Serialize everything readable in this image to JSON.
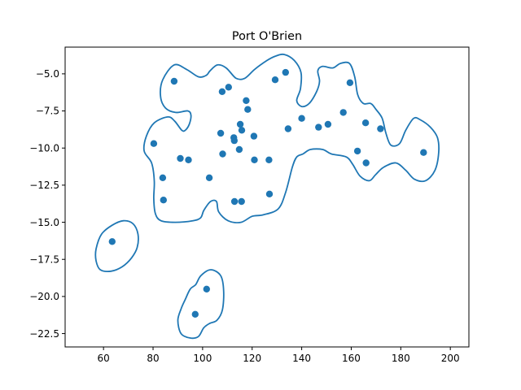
{
  "chart_data": {
    "type": "scatter",
    "title": "Port O'Brien",
    "xlabel": "",
    "ylabel": "",
    "xlim": [
      44.5,
      207.5
    ],
    "ylim": [
      -23.4,
      -3.2
    ],
    "x_ticks": [
      60,
      80,
      100,
      120,
      140,
      160,
      180,
      200
    ],
    "y_ticks": [
      -5.0,
      -7.5,
      -10.0,
      -12.5,
      -15.0,
      -17.5,
      -20.0,
      -22.5
    ],
    "x_tick_labels": [
      "60",
      "80",
      "100",
      "120",
      "140",
      "160",
      "180",
      "200"
    ],
    "y_tick_labels": [
      "−5.0",
      "−7.5",
      "−10.0",
      "−12.5",
      "−15.0",
      "−17.5",
      "−20.0",
      "−22.5"
    ],
    "grid": false,
    "color": "#1f77b4",
    "points": [
      [
        63.5,
        -16.3
      ],
      [
        80.3,
        -9.7
      ],
      [
        83.9,
        -12.0
      ],
      [
        84.2,
        -13.5
      ],
      [
        88.5,
        -5.5
      ],
      [
        91.0,
        -10.7
      ],
      [
        94.3,
        -10.8
      ],
      [
        101.6,
        -19.5
      ],
      [
        97.0,
        -21.2
      ],
      [
        102.7,
        -12.0
      ],
      [
        107.3,
        -9.0
      ],
      [
        107.9,
        -6.2
      ],
      [
        108.1,
        -10.4
      ],
      [
        110.5,
        -5.9
      ],
      [
        112.6,
        -9.3
      ],
      [
        112.8,
        -9.5
      ],
      [
        112.9,
        -13.6
      ],
      [
        114.8,
        -10.1
      ],
      [
        115.2,
        -8.4
      ],
      [
        115.8,
        -8.8
      ],
      [
        115.7,
        -13.6
      ],
      [
        117.6,
        -6.8
      ],
      [
        118.2,
        -7.4
      ],
      [
        120.7,
        -9.2
      ],
      [
        120.9,
        -10.8
      ],
      [
        126.8,
        -10.8
      ],
      [
        127.0,
        -13.1
      ],
      [
        129.3,
        -5.4
      ],
      [
        133.5,
        -4.9
      ],
      [
        134.5,
        -8.7
      ],
      [
        140.0,
        -8.0
      ],
      [
        146.8,
        -8.6
      ],
      [
        150.6,
        -8.4
      ],
      [
        156.8,
        -7.6
      ],
      [
        159.5,
        -5.6
      ],
      [
        162.5,
        -10.2
      ],
      [
        165.8,
        -8.3
      ],
      [
        166.0,
        -11.0
      ],
      [
        171.8,
        -8.7
      ],
      [
        189.2,
        -10.3
      ]
    ],
    "regions": [
      [
        [
          76.4,
          -10.2
        ],
        [
          77.3,
          -9.2
        ],
        [
          80.5,
          -8.3
        ],
        [
          86.0,
          -7.9
        ],
        [
          88.8,
          -8.2
        ],
        [
          91.6,
          -8.8
        ],
        [
          93.0,
          -8.8
        ],
        [
          94.6,
          -8.4
        ],
        [
          95.3,
          -7.8
        ],
        [
          94.0,
          -7.5
        ],
        [
          89.1,
          -7.6
        ],
        [
          85.0,
          -7.3
        ],
        [
          83.0,
          -6.5
        ],
        [
          83.9,
          -5.4
        ],
        [
          88.5,
          -4.4
        ],
        [
          93.5,
          -4.7
        ],
        [
          98.3,
          -5.2
        ],
        [
          101.5,
          -5.1
        ],
        [
          103.0,
          -4.8
        ],
        [
          106.0,
          -4.4
        ],
        [
          109.5,
          -4.6
        ],
        [
          113.5,
          -5.3
        ],
        [
          117.0,
          -5.3
        ],
        [
          121.0,
          -4.7
        ],
        [
          126.0,
          -4.1
        ],
        [
          129.5,
          -3.8
        ],
        [
          133.0,
          -3.7
        ],
        [
          137.0,
          -4.1
        ],
        [
          139.7,
          -4.9
        ],
        [
          139.5,
          -6.0
        ],
        [
          138.0,
          -6.8
        ],
        [
          140.0,
          -7.2
        ],
        [
          143.0,
          -7.0
        ],
        [
          146.0,
          -6.2
        ],
        [
          147.2,
          -5.5
        ],
        [
          146.5,
          -4.8
        ],
        [
          148.3,
          -4.5
        ],
        [
          152.6,
          -4.6
        ],
        [
          155.6,
          -4.3
        ],
        [
          159.3,
          -4.3
        ],
        [
          161.4,
          -5.2
        ],
        [
          162.6,
          -6.4
        ],
        [
          164.9,
          -7.0
        ],
        [
          167.9,
          -7.0
        ],
        [
          170.0,
          -7.4
        ],
        [
          172.5,
          -8.0
        ],
        [
          174.0,
          -9.0
        ],
        [
          176.0,
          -9.8
        ],
        [
          179.5,
          -9.7
        ],
        [
          182.0,
          -8.8
        ],
        [
          185.2,
          -8.0
        ],
        [
          187.9,
          -8.1
        ],
        [
          192.0,
          -8.6
        ],
        [
          194.8,
          -9.3
        ],
        [
          195.3,
          -10.3
        ],
        [
          193.8,
          -11.5
        ],
        [
          190.0,
          -12.2
        ],
        [
          185.5,
          -12.1
        ],
        [
          182.0,
          -11.5
        ],
        [
          178.0,
          -11.0
        ],
        [
          173.0,
          -11.3
        ],
        [
          169.8,
          -11.8
        ],
        [
          167.3,
          -12.2
        ],
        [
          163.6,
          -11.9
        ],
        [
          160.6,
          -11.1
        ],
        [
          158.0,
          -10.6
        ],
        [
          152.0,
          -10.4
        ],
        [
          148.5,
          -10.1
        ],
        [
          143.5,
          -10.1
        ],
        [
          140.5,
          -10.4
        ],
        [
          138.0,
          -10.6
        ],
        [
          136.2,
          -11.3
        ],
        [
          133.5,
          -13.0
        ],
        [
          130.5,
          -14.1
        ],
        [
          124.5,
          -14.5
        ],
        [
          120.0,
          -14.6
        ],
        [
          115.5,
          -15.0
        ],
        [
          110.3,
          -14.9
        ],
        [
          106.5,
          -14.3
        ],
        [
          105.6,
          -13.6
        ],
        [
          103.2,
          -13.6
        ],
        [
          100.5,
          -14.2
        ],
        [
          99.2,
          -14.7
        ],
        [
          96.0,
          -14.9
        ],
        [
          89.0,
          -15.0
        ],
        [
          83.2,
          -14.9
        ],
        [
          80.9,
          -14.4
        ],
        [
          80.3,
          -13.4
        ],
        [
          80.5,
          -12.2
        ],
        [
          79.4,
          -11.0
        ]
      ],
      [
        [
          57.0,
          -16.8
        ],
        [
          59.2,
          -15.8
        ],
        [
          63.5,
          -15.2
        ],
        [
          68.0,
          -14.9
        ],
        [
          71.9,
          -15.1
        ],
        [
          73.9,
          -15.8
        ],
        [
          73.6,
          -16.7
        ],
        [
          71.3,
          -17.4
        ],
        [
          67.5,
          -18.0
        ],
        [
          63.0,
          -18.3
        ],
        [
          58.7,
          -18.2
        ],
        [
          57.0,
          -17.6
        ]
      ],
      [
        [
          90.0,
          -21.6
        ],
        [
          91.4,
          -20.8
        ],
        [
          93.0,
          -20.2
        ],
        [
          95.0,
          -19.5
        ],
        [
          97.2,
          -19.2
        ],
        [
          99.3,
          -18.6
        ],
        [
          103.3,
          -18.2
        ],
        [
          107.3,
          -18.6
        ],
        [
          108.5,
          -19.6
        ],
        [
          108.0,
          -20.9
        ],
        [
          105.8,
          -21.6
        ],
        [
          103.0,
          -21.8
        ],
        [
          100.5,
          -22.1
        ],
        [
          98.3,
          -22.7
        ],
        [
          95.0,
          -22.8
        ],
        [
          91.3,
          -22.5
        ]
      ]
    ]
  }
}
